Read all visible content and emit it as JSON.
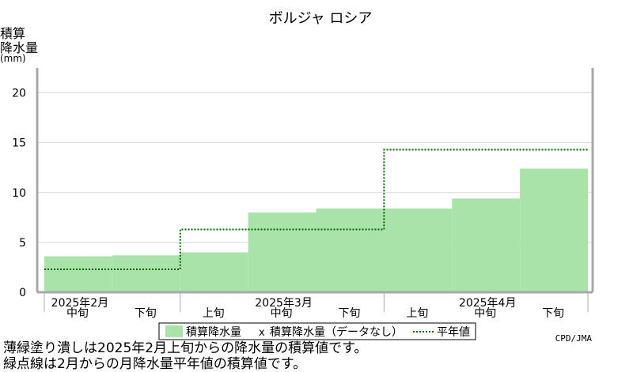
{
  "chart_data": {
    "type": "area",
    "title": "ボルジャ ロシア",
    "ylabel_lines": [
      "積算",
      "降水量",
      "(mm)"
    ],
    "yticks": [
      0,
      5,
      10,
      15,
      20
    ],
    "ylim": [
      0,
      22.5
    ],
    "periods": [
      "2月中旬",
      "2月下旬",
      "3月上旬",
      "3月中旬",
      "3月下旬",
      "4月上旬",
      "4月中旬",
      "4月下旬"
    ],
    "dekad_labels": [
      "中旬",
      "下旬",
      "上旬",
      "中旬",
      "下旬",
      "上旬",
      "中旬",
      "下旬"
    ],
    "month_labels": [
      {
        "label": "2025年2月",
        "at": 0.5
      },
      {
        "label": "2025年3月",
        "at": 3.5
      },
      {
        "label": "2025年4月",
        "at": 6.5
      }
    ],
    "series": [
      {
        "name": "積算降水量",
        "color": "#aae3aa",
        "steps": [
          {
            "x0": 0.0,
            "x1": 1.0,
            "y": 3.6
          },
          {
            "x0": 1.0,
            "x1": 2.0,
            "y": 3.7
          },
          {
            "x0": 2.0,
            "x1": 3.0,
            "y": 4.0
          },
          {
            "x0": 3.0,
            "x1": 4.0,
            "y": 8.0
          },
          {
            "x0": 4.0,
            "x1": 6.0,
            "y": 8.4
          },
          {
            "x0": 6.0,
            "x1": 7.0,
            "y": 9.4
          },
          {
            "x0": 7.0,
            "x1": 8.0,
            "y": 12.4
          }
        ]
      },
      {
        "name": "平年値",
        "color": "#006600",
        "steps": [
          {
            "x0": 0.0,
            "x1": 2.0,
            "y": 2.3
          },
          {
            "x0": 2.0,
            "x1": 5.0,
            "y": 6.3
          },
          {
            "x0": 5.0,
            "x1": 8.0,
            "y": 14.3
          }
        ]
      }
    ],
    "legend": {
      "placement": "bottom",
      "items": [
        {
          "kind": "box",
          "label": "積算降水量"
        },
        {
          "kind": "x",
          "label": "積算降水量（データなし）"
        },
        {
          "kind": "dots",
          "label": "平年値"
        }
      ]
    },
    "grid": true,
    "credit": "CPD/JMA"
  },
  "notes": [
    "薄緑塗り潰しは2025年2月上旬からの降水量の積算値です。",
    "緑点線は2月からの月降水量平年値の積算値です。"
  ]
}
